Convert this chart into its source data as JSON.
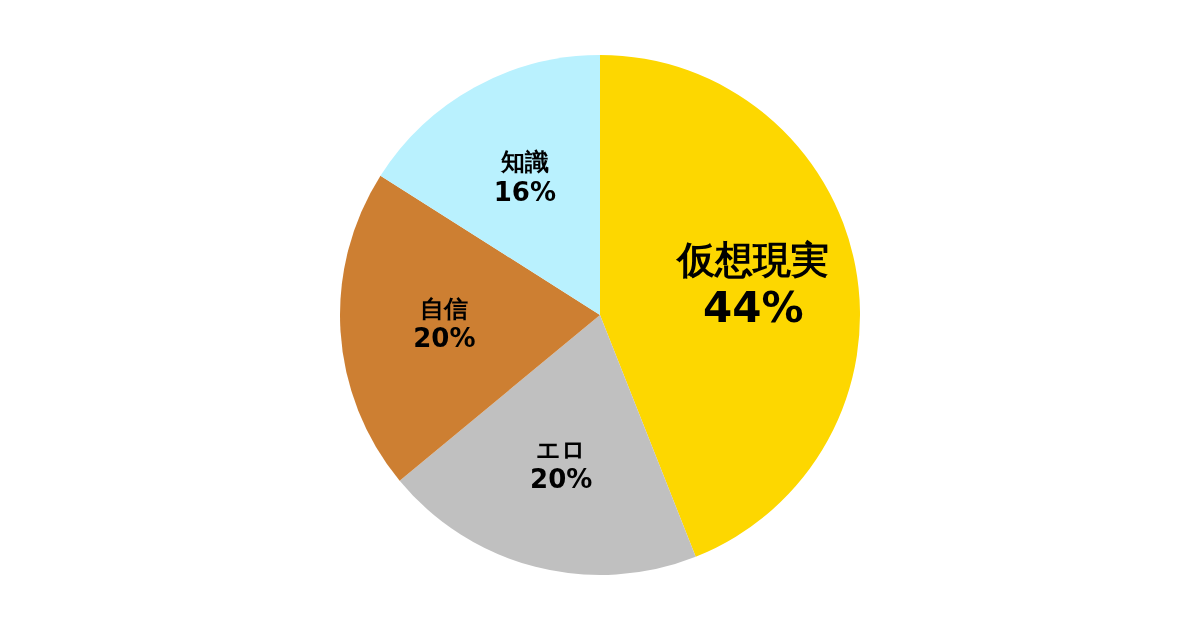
{
  "chart_data": {
    "type": "pie",
    "categories": [
      "仮想現実",
      "エロ",
      "自信",
      "知識"
    ],
    "values": [
      44,
      20,
      20,
      16
    ],
    "value_labels": [
      "44%",
      "20%",
      "20%",
      "16%"
    ],
    "colors": [
      "#fdd700",
      "#c0c0c0",
      "#cd7f32",
      "#b9f1fe"
    ],
    "legend": false
  }
}
